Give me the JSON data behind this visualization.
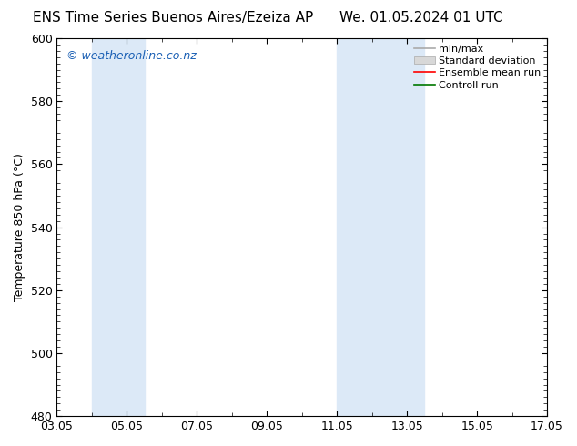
{
  "title_left": "ENS Time Series Buenos Aires/Ezeiza AP",
  "title_right": "We. 01.05.2024 01 UTC",
  "ylabel": "Temperature 850 hPa (°C)",
  "ylim_bottom": 480,
  "ylim_top": 600,
  "yticks": [
    480,
    500,
    520,
    540,
    560,
    580,
    600
  ],
  "xticks_labels": [
    "03.05",
    "05.05",
    "07.05",
    "09.05",
    "11.05",
    "13.05",
    "15.05",
    "17.05"
  ],
  "xticks_positions": [
    0,
    2,
    4,
    6,
    8,
    10,
    12,
    14
  ],
  "xlim": [
    0,
    14
  ],
  "shaded_regions": [
    {
      "x_start": 1.0,
      "x_end": 2.5
    },
    {
      "x_start": 8.0,
      "x_end": 10.5
    }
  ],
  "shaded_color": "#dce9f7",
  "background_color": "#ffffff",
  "watermark_text": "© weatheronline.co.nz",
  "watermark_color": "#1a5fb4",
  "legend_entries": [
    {
      "label": "min/max",
      "color": "#aaaaaa"
    },
    {
      "label": "Standard deviation",
      "color": "#cccccc"
    },
    {
      "label": "Ensemble mean run",
      "color": "#ff0000"
    },
    {
      "label": "Controll run",
      "color": "#007700"
    }
  ],
  "border_color": "#000000",
  "tick_color": "#000000",
  "font_size_title": 11,
  "font_size_axis": 9,
  "font_size_ticks": 9,
  "font_size_legend": 8,
  "font_size_watermark": 9,
  "fig_width": 6.34,
  "fig_height": 4.9,
  "dpi": 100
}
